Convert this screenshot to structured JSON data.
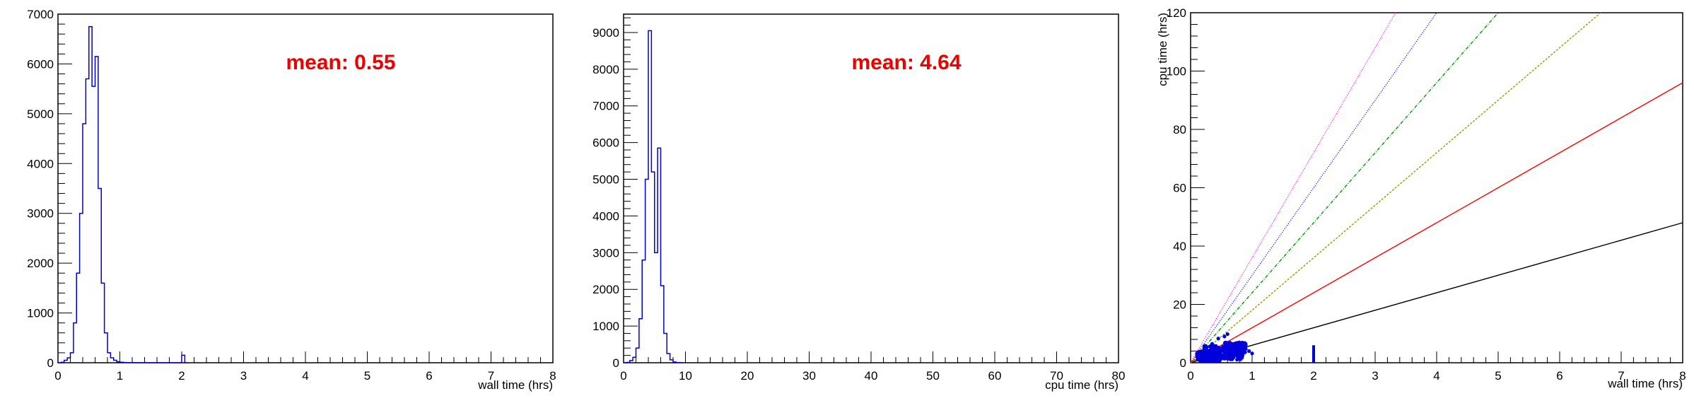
{
  "chart_data": [
    {
      "type": "histogram",
      "title": "",
      "xlabel": "wall time (hrs)",
      "ylabel": "",
      "xlim": [
        0,
        8
      ],
      "ylim": [
        0,
        7000
      ],
      "xticks": [
        "0",
        "1",
        "2",
        "3",
        "4",
        "5",
        "6",
        "7",
        "8"
      ],
      "yticks": [
        "0",
        "1000",
        "2000",
        "3000",
        "4000",
        "5000",
        "6000",
        "7000"
      ],
      "annotation": "mean: 0.55",
      "annotation_color": "#ee0000",
      "line_color": "#0000cc",
      "bin_width": 0.05,
      "bins_x": [
        0.0,
        0.05,
        0.1,
        0.15,
        0.2,
        0.25,
        0.3,
        0.35,
        0.4,
        0.45,
        0.5,
        0.55,
        0.6,
        0.65,
        0.7,
        0.75,
        0.8,
        0.85,
        0.9,
        0.95,
        1.0,
        1.05,
        1.1,
        1.15,
        1.2,
        1.25,
        1.3,
        1.35,
        1.4,
        1.45,
        1.5,
        1.55,
        1.6,
        1.65,
        1.7,
        1.75,
        1.8,
        1.85,
        1.9,
        1.95,
        2.0,
        2.05
      ],
      "bins_y": [
        0,
        10,
        50,
        100,
        200,
        800,
        1800,
        3000,
        4800,
        5700,
        6750,
        5550,
        6150,
        3500,
        1600,
        600,
        200,
        100,
        50,
        20,
        10,
        5,
        3,
        2,
        1,
        1,
        0,
        0,
        0,
        0,
        0,
        0,
        0,
        0,
        0,
        0,
        0,
        0,
        0,
        0,
        150,
        0
      ]
    },
    {
      "type": "histogram",
      "title": "",
      "xlabel": "cpu time (hrs)",
      "ylabel": "",
      "xlim": [
        0,
        80
      ],
      "ylim": [
        0,
        9500
      ],
      "xticks": [
        "0",
        "10",
        "20",
        "30",
        "40",
        "50",
        "60",
        "70",
        "80"
      ],
      "yticks": [
        "0",
        "1000",
        "2000",
        "3000",
        "4000",
        "5000",
        "6000",
        "7000",
        "8000",
        "9000"
      ],
      "annotation": "mean: 4.64",
      "annotation_color": "#ee0000",
      "line_color": "#0000cc",
      "bin_width": 0.5,
      "bins_x": [
        0.0,
        0.5,
        1.0,
        1.5,
        2.0,
        2.5,
        3.0,
        3.5,
        4.0,
        4.5,
        5.0,
        5.5,
        6.0,
        6.5,
        7.0,
        7.5,
        8.0,
        8.5,
        9.0
      ],
      "bins_y": [
        0,
        10,
        60,
        150,
        400,
        1200,
        2800,
        5000,
        9050,
        5200,
        3000,
        5850,
        2100,
        800,
        250,
        80,
        20,
        5,
        2
      ]
    },
    {
      "type": "scatter",
      "title": "",
      "xlabel": "wall time (hrs)",
      "ylabel": "cpu time (hrs)",
      "xlim": [
        0,
        8
      ],
      "ylim": [
        0,
        120
      ],
      "xticks": [
        "0",
        "1",
        "2",
        "3",
        "4",
        "5",
        "6",
        "7",
        "8"
      ],
      "yticks": [
        "0",
        "20",
        "40",
        "60",
        "80",
        "100",
        "120"
      ],
      "point_color": "#0000dd",
      "reference_lines": [
        {
          "slope": 6,
          "color": "#000000",
          "dash": "solid"
        },
        {
          "slope": 12,
          "color": "#ff0000",
          "dash": "solid"
        },
        {
          "slope": 18,
          "color": "#999900",
          "dash": "3,2"
        },
        {
          "slope": 24,
          "color": "#009900",
          "dash": "5,2,1,2"
        },
        {
          "slope": 30,
          "color": "#0000ff",
          "dash": "1,2"
        },
        {
          "slope": 36,
          "color": "#ff00ff",
          "dash": "1,2"
        }
      ],
      "clusters": [
        {
          "x": [
            0.2,
            0.85
          ],
          "y": [
            1,
            6
          ]
        },
        {
          "x": [
            0.1,
            0.5
          ],
          "y": [
            0.5,
            4
          ]
        },
        {
          "x": [
            0.55,
            0.9
          ],
          "y": [
            3,
            7
          ]
        }
      ],
      "outliers": [
        [
          0.45,
          8.3
        ],
        [
          0.55,
          9.0
        ],
        [
          0.6,
          9.8
        ],
        [
          0.35,
          6.5
        ],
        [
          0.95,
          4.0
        ],
        [
          1.0,
          3.2
        ],
        [
          0.15,
          1.5
        ]
      ],
      "vertical_segment": {
        "x": 2.0,
        "y": [
          0,
          6
        ]
      }
    }
  ]
}
